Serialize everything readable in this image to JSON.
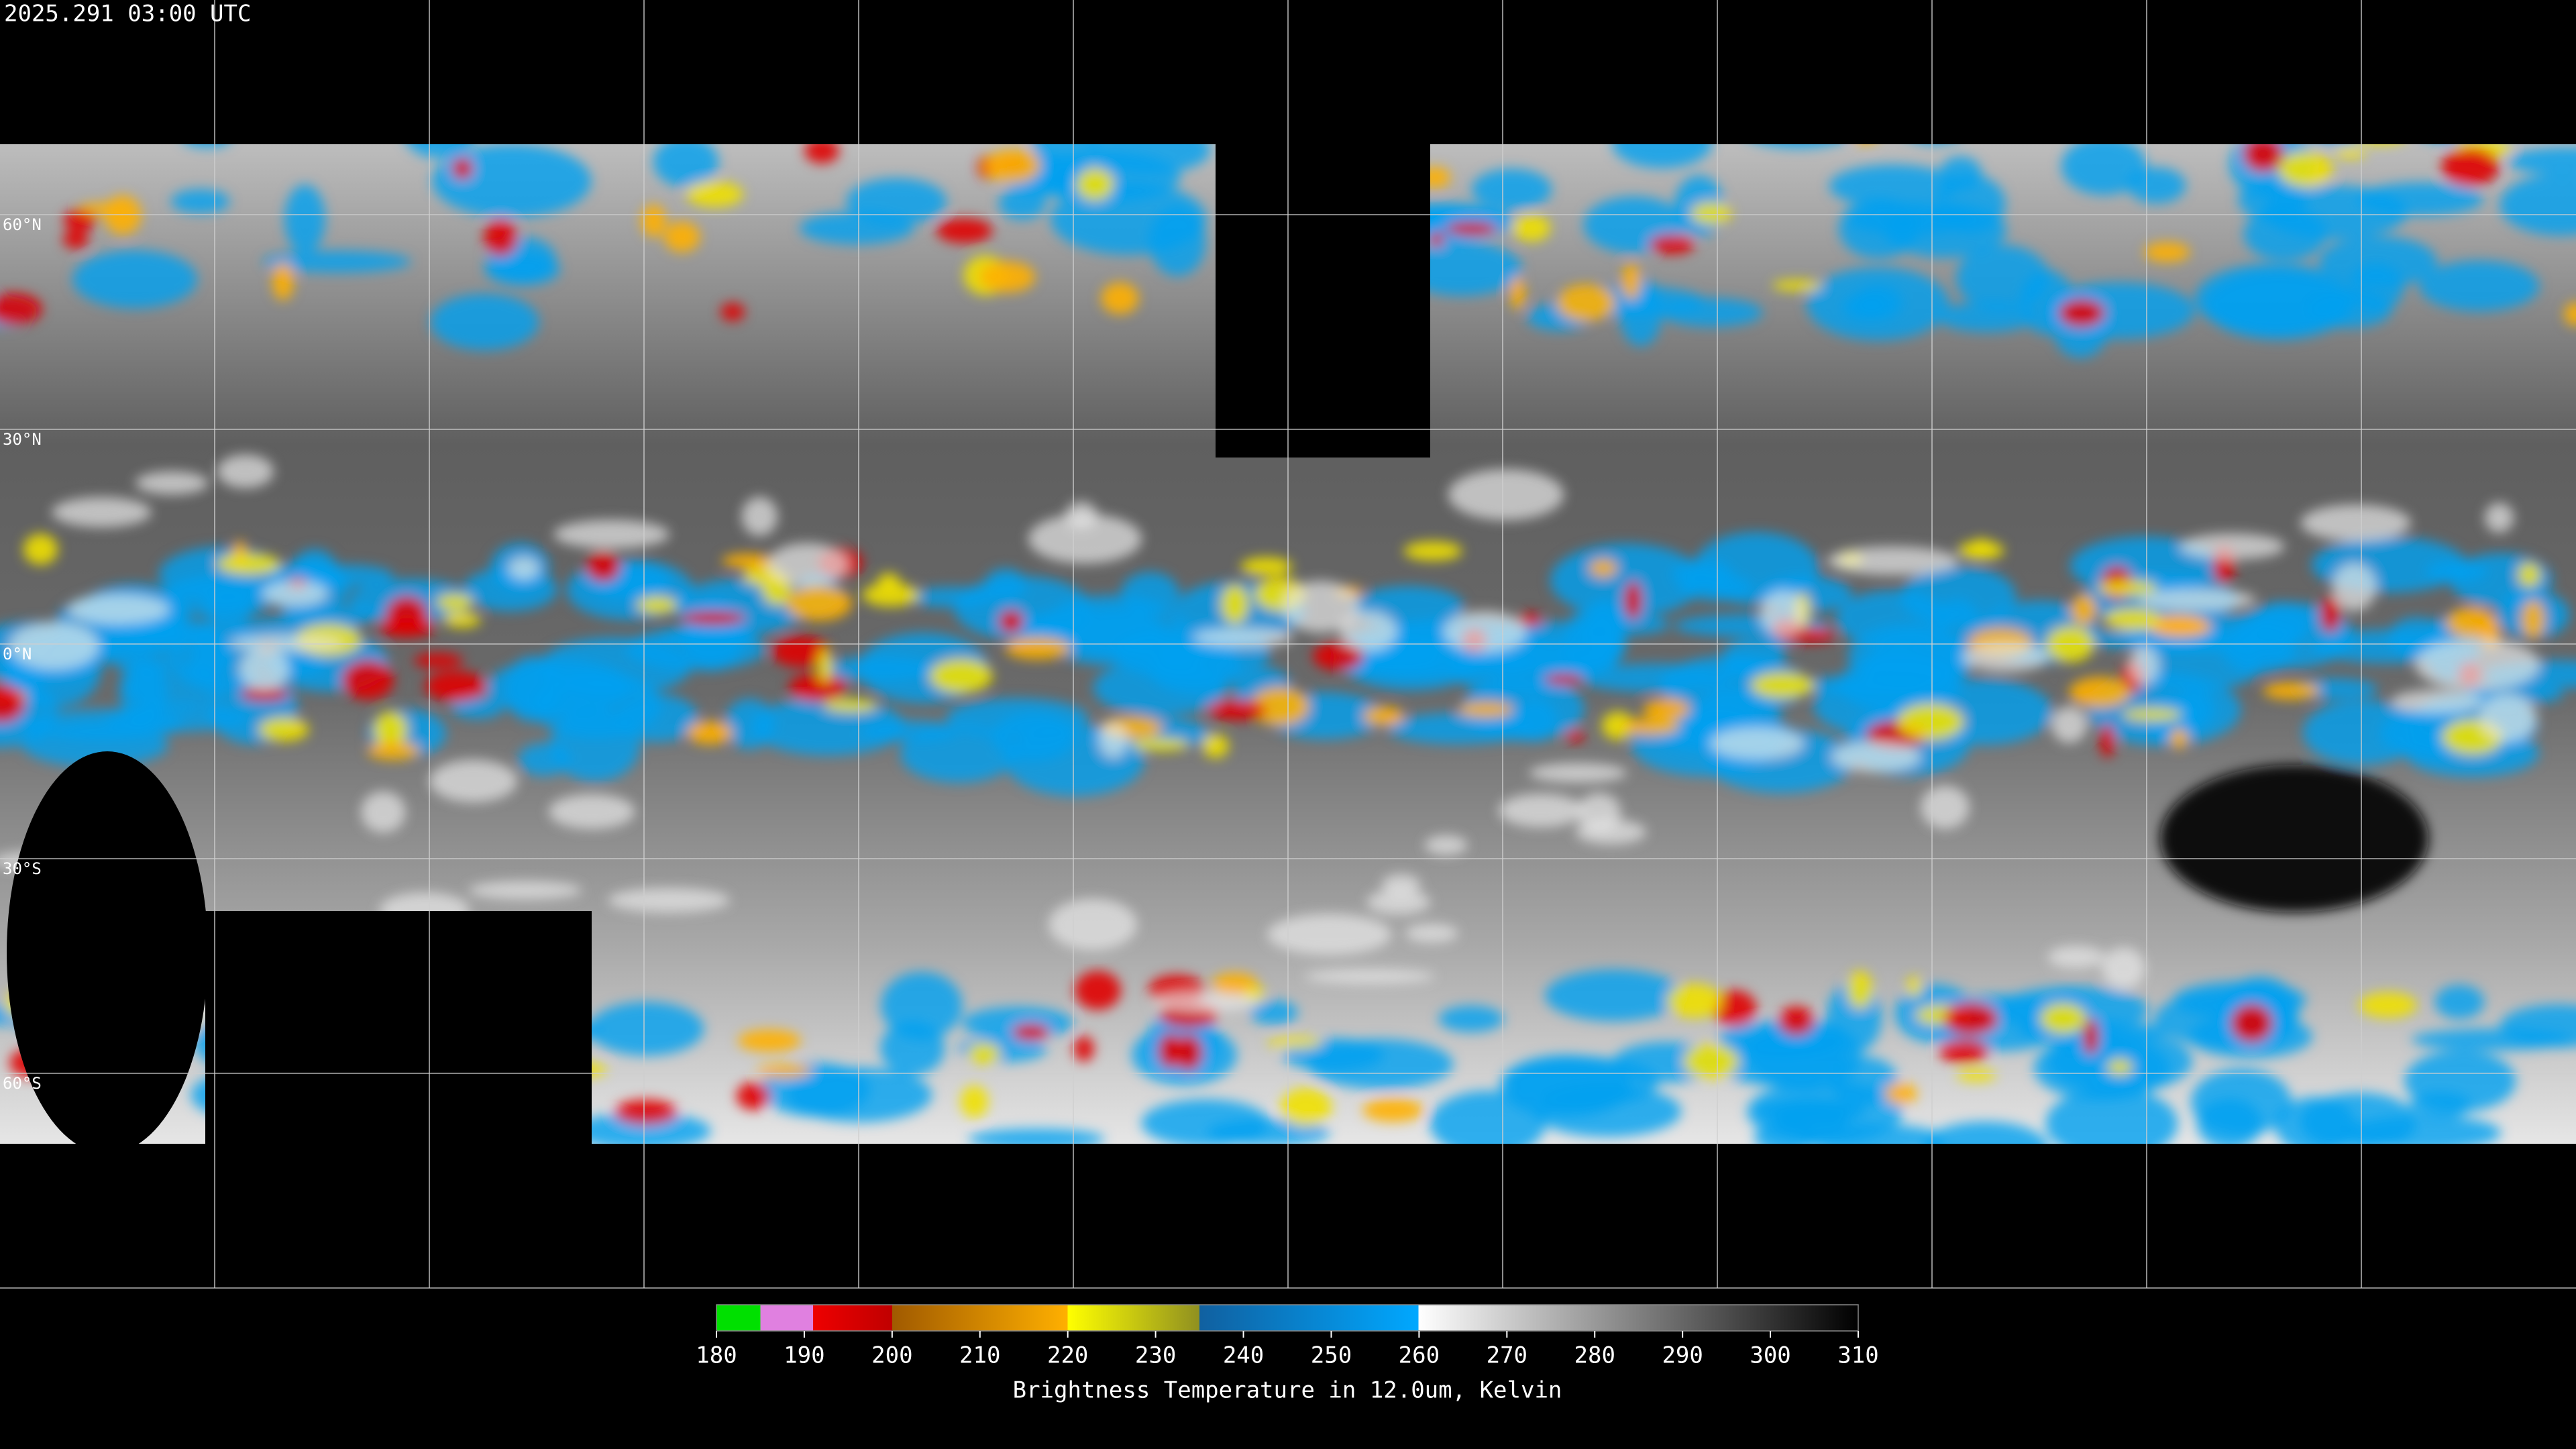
{
  "header": {
    "title": "2025.291 03:00 UTC"
  },
  "map": {
    "latitude_labels": [
      "60°N",
      "30°N",
      "0°N",
      "30°S",
      "60°S"
    ]
  },
  "colorbar": {
    "lim": [
      180,
      310
    ],
    "ticks": [
      180,
      190,
      200,
      210,
      220,
      230,
      240,
      250,
      260,
      270,
      280,
      290,
      300,
      310
    ],
    "label": "Brightness Temperature in 12.0um, Kelvin"
  }
}
